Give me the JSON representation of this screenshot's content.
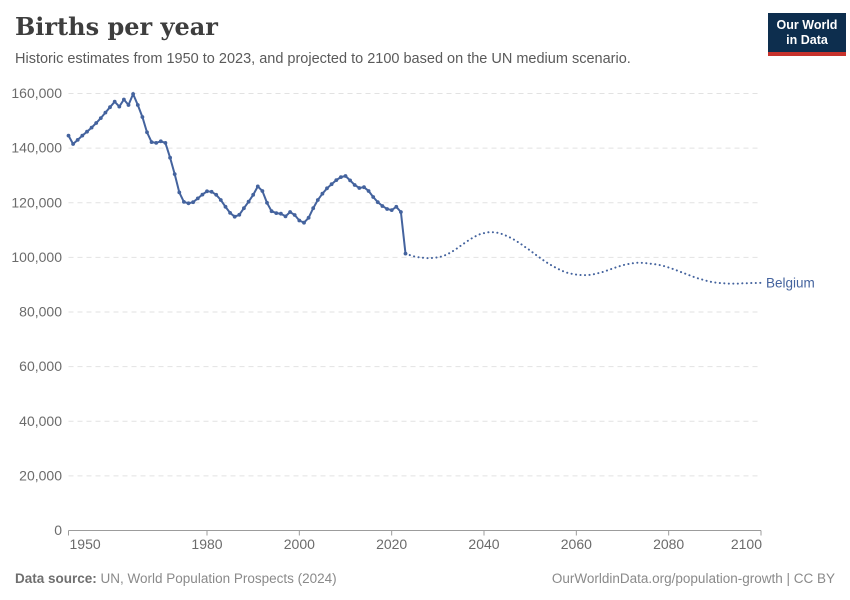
{
  "header": {
    "title": "Births per year",
    "subtitle": "Historic estimates from 1950 to 2023, and projected to 2100 based on the UN medium scenario.",
    "logo": {
      "line1": "Our World",
      "line2": "in Data"
    }
  },
  "footer": {
    "source_label": "Data source:",
    "source_text": " UN, World Population Prospects (2024)",
    "credit": "OurWorldinData.org/population-growth | CC BY"
  },
  "chart_data": {
    "type": "line",
    "title": "Births per year",
    "entity": "Belgium",
    "xlim": [
      1950,
      2100
    ],
    "ylim": [
      0,
      160000
    ],
    "x_ticks": [
      1950,
      1980,
      2000,
      2020,
      2040,
      2060,
      2080,
      2100
    ],
    "y_ticks": [
      0,
      20000,
      40000,
      60000,
      80000,
      100000,
      120000,
      140000,
      160000
    ],
    "grid": "horizontal-dashed",
    "legend_position": "end-of-line-label",
    "colors": {
      "line": "#44639e",
      "entity_label": "#44639e",
      "grid": "#e2e2e2",
      "axis": "#9c9c9c",
      "tick_text": "#6b6b6b"
    },
    "series": [
      {
        "name": "historic",
        "style": "solid",
        "markers": true,
        "start_year": 1950,
        "values": [
          144600,
          141500,
          143000,
          144600,
          146000,
          147500,
          149200,
          151000,
          153000,
          155000,
          157000,
          155200,
          157800,
          155800,
          159800,
          155800,
          151400,
          145800,
          142200,
          141900,
          142500,
          141900,
          136500,
          130500,
          123800,
          120300,
          119800,
          120200,
          121600,
          123000,
          124200,
          124000,
          122900,
          121000,
          118500,
          116300,
          114900,
          115600,
          118000,
          120400,
          122900,
          126000,
          124300,
          120000,
          116900,
          116200,
          116000,
          115000,
          116600,
          115500,
          113500,
          112700,
          114500,
          118000,
          121000,
          123300,
          125300,
          126800,
          128300,
          129400,
          129800,
          128200,
          126500,
          125400,
          125700,
          124300,
          122100,
          120200,
          118800,
          117700,
          117300,
          118500,
          116600,
          101400
        ]
      },
      {
        "name": "projection (UN medium scenario)",
        "style": "dotted",
        "markers": false,
        "start_year": 2023,
        "values": [
          101400,
          100800,
          100300,
          100000,
          99800,
          99700,
          99800,
          100000,
          100400,
          101100,
          102000,
          103100,
          104300,
          105500,
          106600,
          107600,
          108400,
          108900,
          109200,
          109200,
          109000,
          108500,
          107800,
          107000,
          106000,
          104900,
          103700,
          102500,
          101200,
          100000,
          98800,
          97700,
          96700,
          95800,
          95000,
          94400,
          94000,
          93700,
          93500,
          93500,
          93600,
          93900,
          94300,
          94800,
          95400,
          96000,
          96600,
          97100,
          97500,
          97800,
          98000,
          98000,
          97900,
          97700,
          97500,
          97200,
          96800,
          96300,
          95700,
          95100,
          94400,
          93800,
          93100,
          92500,
          92000,
          91500,
          91100,
          90800,
          90600,
          90500,
          90400,
          90400,
          90400,
          90500,
          90500,
          90600,
          90600,
          90700
        ]
      }
    ]
  }
}
